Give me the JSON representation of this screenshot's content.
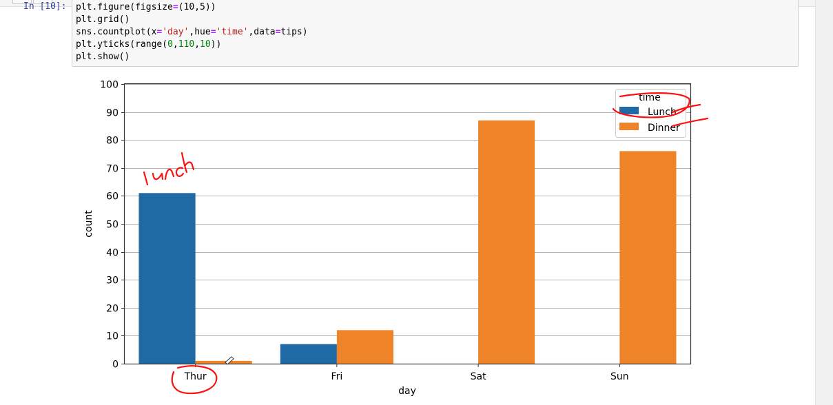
{
  "notebook": {
    "prompt": "In [10]:",
    "code_lines": [
      [
        {
          "t": "plt.figure(figsize"
        },
        {
          "t": "=",
          "k": "op"
        },
        {
          "t": "(10,5))"
        }
      ],
      [
        {
          "t": "plt.grid()"
        }
      ],
      [
        {
          "t": "sns.countplot(x"
        },
        {
          "t": "=",
          "k": "op"
        },
        {
          "t": "'day'",
          "k": "str"
        },
        {
          "t": ",hue"
        },
        {
          "t": "=",
          "k": "op"
        },
        {
          "t": "'time'",
          "k": "str"
        },
        {
          "t": ",data"
        },
        {
          "t": "=",
          "k": "op"
        },
        {
          "t": "tips)"
        }
      ],
      [
        {
          "t": "plt.yticks(range("
        },
        {
          "t": "0",
          "k": "num"
        },
        {
          "t": ","
        },
        {
          "t": "110",
          "k": "num"
        },
        {
          "t": ","
        },
        {
          "t": "10",
          "k": "num"
        },
        {
          "t": "))"
        }
      ],
      [
        {
          "t": "plt.show()"
        }
      ]
    ]
  },
  "chart_data": {
    "type": "bar",
    "categories": [
      "Thur",
      "Fri",
      "Sat",
      "Sun"
    ],
    "series": [
      {
        "name": "Lunch",
        "color": "#1f6aa5",
        "values": [
          61,
          7,
          0,
          0
        ]
      },
      {
        "name": "Dinner",
        "color": "#ee8327",
        "values": [
          1,
          12,
          87,
          76
        ]
      }
    ],
    "xlabel": "day",
    "ylabel": "count",
    "ylim": [
      0,
      100
    ],
    "yticks": [
      0,
      10,
      20,
      30,
      40,
      50,
      60,
      70,
      80,
      90,
      100
    ],
    "grid": true,
    "legend": {
      "title": "time",
      "placement": "top-right"
    }
  },
  "annotations": {
    "handwritten_note": "lunch"
  }
}
